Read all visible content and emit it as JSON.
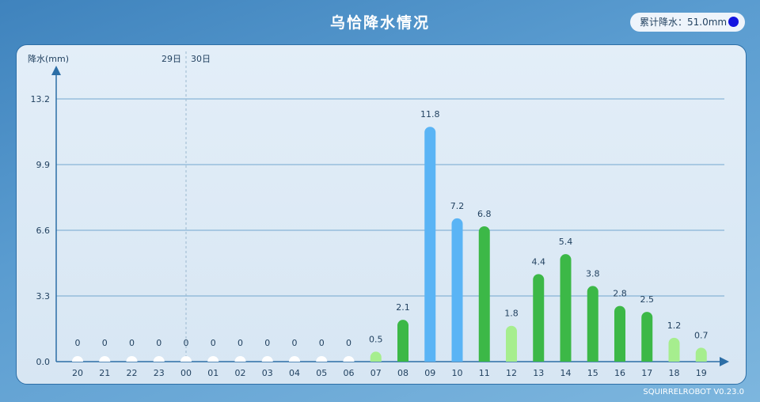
{
  "header": {
    "title": "乌恰降水情况",
    "total_label": "累计降水：51.0mm",
    "total_dot_color": "#1414e0"
  },
  "footer": {
    "version": "SQUIRRELROBOT V0.23.0"
  },
  "chart_data": {
    "type": "bar",
    "ylabel": "降水(mm)",
    "y_ticks": [
      "0.0",
      "3.3",
      "6.6",
      "9.9",
      "13.2"
    ],
    "ylim": [
      0,
      13.2
    ],
    "day_labels": [
      {
        "text": "29日",
        "after_index": 3
      },
      {
        "text": "30日",
        "after_index": 4
      }
    ],
    "day_divider_index": 4,
    "categories": [
      "20",
      "21",
      "22",
      "23",
      "00",
      "01",
      "02",
      "03",
      "04",
      "05",
      "06",
      "07",
      "08",
      "09",
      "10",
      "11",
      "12",
      "13",
      "14",
      "15",
      "16",
      "17",
      "18",
      "19"
    ],
    "values": [
      0,
      0,
      0,
      0,
      0,
      0,
      0,
      0,
      0,
      0,
      0,
      0.5,
      2.1,
      11.8,
      7.2,
      6.8,
      1.8,
      4.4,
      5.4,
      3.8,
      2.8,
      2.5,
      1.2,
      0.7
    ],
    "value_labels": [
      "0",
      "0",
      "0",
      "0",
      "0",
      "0",
      "0",
      "0",
      "0",
      "0",
      "0",
      "0.5",
      "2.1",
      "11.8",
      "7.2",
      "6.8",
      "1.8",
      "4.4",
      "5.4",
      "3.8",
      "2.8",
      "2.5",
      "1.2",
      "0.7"
    ],
    "colors": {
      "zero": "#ffffff",
      "light": "#a6ee8e",
      "moderate": "#3cb847",
      "heavy": "#5ab4f5"
    },
    "grid": true
  }
}
